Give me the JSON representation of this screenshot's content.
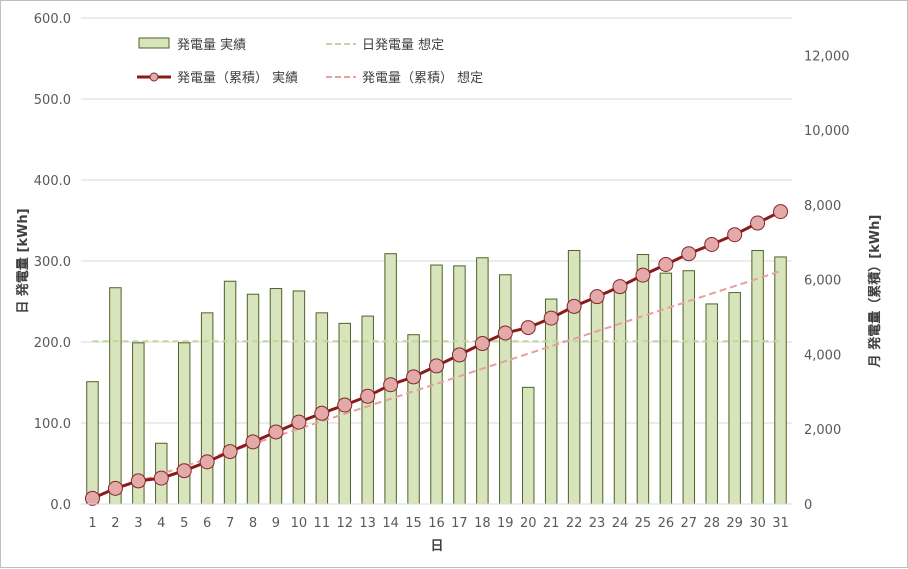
{
  "chart_data": {
    "type": "bar",
    "title": "",
    "xlabel": "日",
    "ylabel_left": "日 発電量 [kWh]",
    "ylabel_right": "月 発電量（累積）[kWh]",
    "ylim_left": [
      0,
      600
    ],
    "ylim_right": [
      0,
      13000
    ],
    "yticks_left": [
      "0.0",
      "100.0",
      "200.0",
      "300.0",
      "400.0",
      "500.0",
      "600.0"
    ],
    "yticks_right": [
      "0",
      "2,000",
      "4,000",
      "6,000",
      "8,000",
      "10,000",
      "12,000"
    ],
    "x": [
      1,
      2,
      3,
      4,
      5,
      6,
      7,
      8,
      9,
      10,
      11,
      12,
      13,
      14,
      15,
      16,
      17,
      18,
      19,
      20,
      21,
      22,
      23,
      24,
      25,
      26,
      27,
      28,
      29,
      30,
      31
    ],
    "grid": true,
    "legend_position": "top-left",
    "series": [
      {
        "name": "発電量 実績",
        "kind": "bar",
        "axis": "left",
        "color": "#d8e4bc",
        "edge_color": "#4f6228",
        "values": [
          151,
          267,
          199,
          75,
          199,
          236,
          275,
          259,
          266,
          263,
          236,
          223,
          232,
          309,
          209,
          295,
          294,
          304,
          283,
          144,
          253,
          313,
          261,
          268,
          308,
          285,
          288,
          247,
          261,
          313,
          305
        ]
      },
      {
        "name": "日発電量 想定",
        "kind": "line-dashed",
        "axis": "left",
        "color": "#c3d69b",
        "values": [
          201,
          201,
          201,
          201,
          201,
          201,
          201,
          201,
          201,
          201,
          201,
          201,
          201,
          201,
          201,
          201,
          201,
          201,
          201,
          201,
          201,
          201,
          201,
          201,
          201,
          201,
          201,
          201,
          201,
          201,
          201
        ]
      },
      {
        "name": "発電量（累積） 実績",
        "kind": "line-markers",
        "axis": "right",
        "color": "#8b1a1a",
        "marker_color": "#e6a9a9",
        "values": [
          151,
          418,
          617,
          692,
          891,
          1127,
          1402,
          1661,
          1927,
          2190,
          2426,
          2649,
          2881,
          3190,
          3399,
          3694,
          3988,
          4292,
          4575,
          4719,
          4972,
          5285,
          5546,
          5814,
          6122,
          6407,
          6695,
          6942,
          7203,
          7516,
          7821
        ]
      },
      {
        "name": "発電量（累積） 想定",
        "kind": "line-dashed",
        "axis": "right",
        "color": "#e6a0a0",
        "values": [
          201,
          402,
          603,
          804,
          1005,
          1206,
          1407,
          1608,
          1809,
          2010,
          2211,
          2412,
          2613,
          2814,
          3015,
          3216,
          3417,
          3618,
          3819,
          4020,
          4221,
          4422,
          4623,
          4824,
          5025,
          5226,
          5427,
          5628,
          5829,
          6030,
          6231
        ]
      }
    ]
  }
}
